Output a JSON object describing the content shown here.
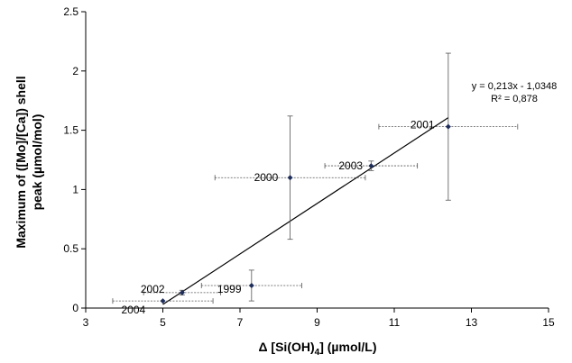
{
  "chart_data": {
    "type": "scatter",
    "title": "",
    "xlabel_prefix": "Δ [Si(OH)",
    "xlabel_sub": "4",
    "xlabel_suffix": "]  (µmol/L)",
    "ylabel_line1": "Maximum of ([Mo]/[Ca]) shell",
    "ylabel_line2": "peak (µmol/mol)",
    "xlim": [
      3,
      15
    ],
    "ylim": [
      0,
      2.5
    ],
    "xticks": [
      3,
      5,
      7,
      9,
      11,
      13,
      15
    ],
    "yticks": [
      0,
      0.5,
      1,
      1.5,
      2,
      2.5
    ],
    "xtick_labels": [
      "3",
      "5",
      "7",
      "9",
      "11",
      "13",
      "15"
    ],
    "ytick_labels": [
      "0",
      "0.5",
      "1",
      "1.5",
      "2",
      "2.5"
    ],
    "grid": false,
    "points": [
      {
        "label": "2004",
        "x": 5.0,
        "y": 0.06,
        "xerr": 1.3,
        "yerr": 0.0
      },
      {
        "label": "2002",
        "x": 5.5,
        "y": 0.13,
        "xerr": 1.0,
        "yerr": 0.02
      },
      {
        "label": "1999",
        "x": 7.3,
        "y": 0.19,
        "xerr": 1.3,
        "yerr": 0.13
      },
      {
        "label": "2000",
        "x": 8.3,
        "y": 1.1,
        "xerr": 1.95,
        "yerr": 0.52
      },
      {
        "label": "2003",
        "x": 10.4,
        "y": 1.2,
        "xerr": 1.2,
        "yerr": 0.04
      },
      {
        "label": "2001",
        "x": 12.4,
        "y": 1.53,
        "xerr": 1.8,
        "yerr": 0.62
      }
    ],
    "trendline": {
      "slope": 0.213,
      "intercept": -1.0348,
      "x_range": [
        5.0,
        12.4
      ]
    },
    "equation": "y = 0,213x - 1,0348",
    "r_squared": "R² = 0,878"
  }
}
